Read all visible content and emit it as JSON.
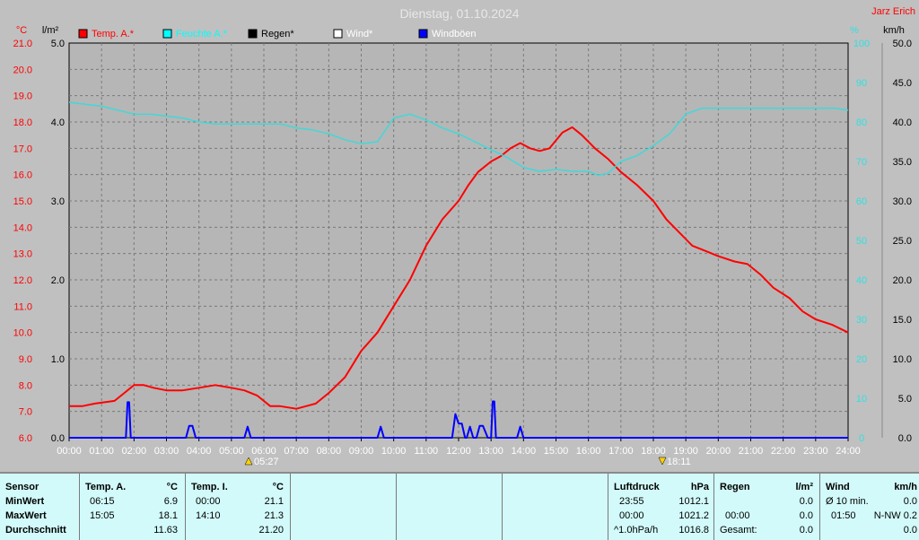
{
  "title": "Dienstag, 01.10.2024",
  "author": "Jarz Erich",
  "unit_labels": {
    "left_temp": "°C",
    "left_rain": "l/m²",
    "right_pct": "%",
    "right_wind": "km/h"
  },
  "legend": [
    {
      "label": "Temp. A.*",
      "color": "#ff0000"
    },
    {
      "label": "Feuchte A.*",
      "color": "#00ffff"
    },
    {
      "label": "Regen*",
      "color": "#000000"
    },
    {
      "label": "Wind*",
      "color": "#ffffff"
    },
    {
      "label": "Windböen",
      "color": "#0000ff"
    }
  ],
  "sun": {
    "sunrise": "05:27",
    "sunset": "18:11"
  },
  "chart_data": {
    "type": "line",
    "title": "Dienstag, 01.10.2024",
    "x_ticks": [
      "00:00",
      "01:00",
      "02:00",
      "03:00",
      "04:00",
      "05:00",
      "06:00",
      "07:00",
      "08:00",
      "09:00",
      "10:00",
      "11:00",
      "12:00",
      "13:00",
      "14:00",
      "15:00",
      "16:00",
      "17:00",
      "18:00",
      "19:00",
      "20:00",
      "21:00",
      "22:00",
      "23:00",
      "24:00"
    ],
    "temp_ticks": [
      "6.0",
      "7.0",
      "8.0",
      "9.0",
      "10.0",
      "11.0",
      "12.0",
      "13.0",
      "14.0",
      "15.0",
      "16.0",
      "17.0",
      "18.0",
      "19.0",
      "20.0",
      "21.0"
    ],
    "rain_ticks": [
      "0.0",
      "1.0",
      "2.0",
      "3.0",
      "4.0",
      "5.0"
    ],
    "pct_ticks": [
      "0",
      "10",
      "20",
      "30",
      "40",
      "50",
      "60",
      "70",
      "80",
      "90",
      "100"
    ],
    "wind_ticks": [
      "0.0",
      "5.0",
      "10.0",
      "15.0",
      "20.0",
      "25.0",
      "30.0",
      "35.0",
      "40.0",
      "45.0",
      "50.0"
    ],
    "ylim_temp": [
      6,
      21
    ],
    "ylim_rain": [
      0,
      5
    ],
    "ylim_pct": [
      0,
      100
    ],
    "ylim_wind": [
      0,
      50
    ],
    "grid": true,
    "series": [
      {
        "name": "Temp. A.*",
        "color": "#ff0000",
        "axis": "temp",
        "x": [
          0,
          0.4,
          0.8,
          1.4,
          1.7,
          2.0,
          2.3,
          2.6,
          3.0,
          3.5,
          4.0,
          4.5,
          5.0,
          5.4,
          5.8,
          6.2,
          6.5,
          7.0,
          7.3,
          7.6,
          8.0,
          8.5,
          9.0,
          9.5,
          10.0,
          10.5,
          11.0,
          11.5,
          12.0,
          12.3,
          12.6,
          13.0,
          13.3,
          13.6,
          13.9,
          14.2,
          14.5,
          14.8,
          15.0,
          15.2,
          15.5,
          15.8,
          16.2,
          16.6,
          17.0,
          17.5,
          18.0,
          18.4,
          18.8,
          19.2,
          19.6,
          20.0,
          20.5,
          20.9,
          21.3,
          21.7,
          22.2,
          22.6,
          23.0,
          23.5,
          24.0
        ],
        "values": [
          7.2,
          7.2,
          7.3,
          7.4,
          7.7,
          8.0,
          8.0,
          7.9,
          7.8,
          7.8,
          7.9,
          8.0,
          7.9,
          7.8,
          7.6,
          7.2,
          7.2,
          7.1,
          7.2,
          7.3,
          7.7,
          8.3,
          9.3,
          10.0,
          11.0,
          12.0,
          13.3,
          14.3,
          15.0,
          15.6,
          16.1,
          16.5,
          16.7,
          17.0,
          17.2,
          17.0,
          16.9,
          17.0,
          17.3,
          17.6,
          17.8,
          17.5,
          17.0,
          16.6,
          16.1,
          15.6,
          15.0,
          14.3,
          13.8,
          13.3,
          13.1,
          12.9,
          12.7,
          12.6,
          12.2,
          11.7,
          11.3,
          10.8,
          10.5,
          10.3,
          10.0
        ]
      },
      {
        "name": "Feuchte A.*",
        "color": "#40d8d8",
        "axis": "pct",
        "x": [
          0,
          0.5,
          1.0,
          1.5,
          2.0,
          2.5,
          3.0,
          3.5,
          4.0,
          4.5,
          5.0,
          5.5,
          6.0,
          6.5,
          7.0,
          7.5,
          8.0,
          8.5,
          9.0,
          9.5,
          10.0,
          10.5,
          11.0,
          11.5,
          12.0,
          12.5,
          13.0,
          13.5,
          14.0,
          14.5,
          15.0,
          15.5,
          16.0,
          16.3,
          16.6,
          17.0,
          17.5,
          18.0,
          18.5,
          19.0,
          19.5,
          20.0,
          21.0,
          22.0,
          23.0,
          23.6,
          24.0
        ],
        "values": [
          85,
          84.5,
          84,
          83,
          82,
          82,
          81.5,
          81,
          80,
          79.5,
          79.5,
          79.5,
          79.5,
          79.5,
          78.5,
          78,
          77,
          75.5,
          74.5,
          75,
          81,
          82,
          80.5,
          78.5,
          77,
          75,
          73,
          71,
          68.5,
          67.5,
          68,
          67.5,
          67.5,
          66.5,
          67,
          70,
          71.5,
          74,
          77,
          82,
          83.5,
          83.5,
          83.5,
          83.5,
          83.5,
          83.5,
          83
        ]
      },
      {
        "name": "Windböen",
        "color": "#0000ff",
        "axis": "wind",
        "x": [
          0,
          1.75,
          1.8,
          1.85,
          1.9,
          2.0,
          3.6,
          3.7,
          3.8,
          3.9,
          4.0,
          5.4,
          5.5,
          5.6,
          9.5,
          9.6,
          9.7,
          11.8,
          11.9,
          12.0,
          12.1,
          12.2,
          12.25,
          12.35,
          12.45,
          12.55,
          12.65,
          12.75,
          12.9,
          13.0,
          13.05,
          13.1,
          13.15,
          13.2,
          13.8,
          13.9,
          14.0,
          14.5,
          24.0
        ],
        "values": [
          0,
          0,
          4.5,
          4.5,
          0,
          0,
          0,
          1.5,
          1.5,
          0,
          0,
          0,
          1.4,
          0,
          0,
          1.4,
          0,
          0,
          3.0,
          1.8,
          1.8,
          0,
          0,
          1.4,
          0,
          0,
          1.5,
          1.5,
          0,
          0,
          4.6,
          4.6,
          0,
          0,
          0,
          1.4,
          0,
          0,
          0
        ]
      }
    ]
  },
  "table": {
    "sensor": {
      "header": "Sensor",
      "rows": [
        "MinWert",
        "MaxWert",
        "Durchschnitt"
      ]
    },
    "temp_a": {
      "header": "Temp. A.",
      "unit": "°C",
      "times": [
        "06:15",
        "15:05",
        ""
      ],
      "values": [
        "6.9",
        "18.1",
        "11.63"
      ]
    },
    "temp_i": {
      "header": "Temp. I.",
      "unit": "°C",
      "times": [
        "00:00",
        "14:10",
        ""
      ],
      "values": [
        "21.1",
        "21.3",
        "21.20"
      ]
    },
    "pressure": {
      "header": "Luftdruck",
      "unit": "hPa",
      "times": [
        "23:55",
        "00:00",
        "^1.0hPa/h"
      ],
      "values": [
        "1012.1",
        "1021.2",
        "1016.8"
      ]
    },
    "rain": {
      "header": "Regen",
      "unit": "l/m²",
      "times": [
        "",
        "00:00",
        "Gesamt:"
      ],
      "values": [
        "0.0",
        "0.0",
        "0.0"
      ]
    },
    "wind": {
      "header": "Wind",
      "unit": "km/h",
      "times": [
        "Ø 10 min.",
        "01:50",
        ""
      ],
      "values": [
        "0.0",
        "N-NW 0.2",
        "0.0"
      ]
    }
  }
}
